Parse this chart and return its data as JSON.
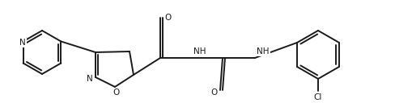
{
  "bg_color": "#ffffff",
  "line_color": "#1a1a1a",
  "lw": 1.4,
  "fs": 7.5,
  "figsize": [
    5.1,
    1.38
  ],
  "dpi": 100,
  "xlim": [
    0,
    510
  ],
  "ylim": [
    0,
    138
  ]
}
